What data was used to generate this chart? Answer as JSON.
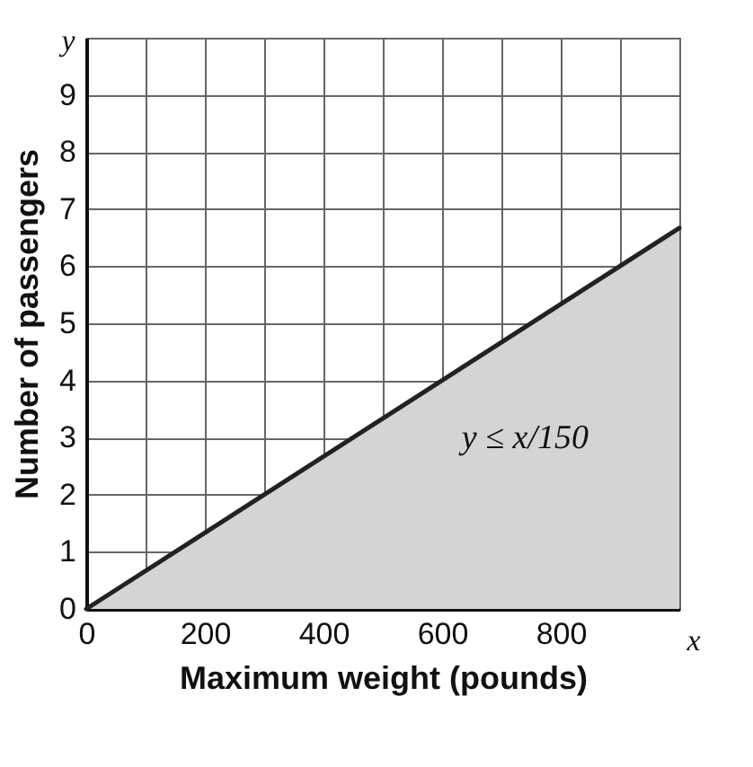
{
  "chart_data": {
    "type": "area",
    "xlabel": "Maximum weight (pounds)",
    "ylabel": "Number of passengers",
    "xlim": [
      0,
      1000
    ],
    "ylim": [
      0,
      10
    ],
    "xticks": [
      0,
      {
        "value": 100,
        "label": null
      },
      200,
      {
        "value": 300,
        "label": null
      },
      400,
      {
        "value": 500,
        "label": null
      },
      600,
      {
        "value": 700,
        "label": null
      },
      800,
      {
        "value": 900,
        "label": null
      },
      {
        "value": 1000,
        "label": null
      }
    ],
    "yticks": [
      0,
      1,
      2,
      3,
      4,
      5,
      6,
      7,
      8,
      9,
      {
        "value": 10,
        "label": null
      }
    ],
    "grid": true,
    "series": [
      {
        "color": "#d4d4d4",
        "x": [
          0,
          1000
        ],
        "values": [
          0,
          6.67
        ]
      }
    ],
    "annotations": [
      "x",
      "y",
      "y ≤ x/150"
    ]
  }
}
